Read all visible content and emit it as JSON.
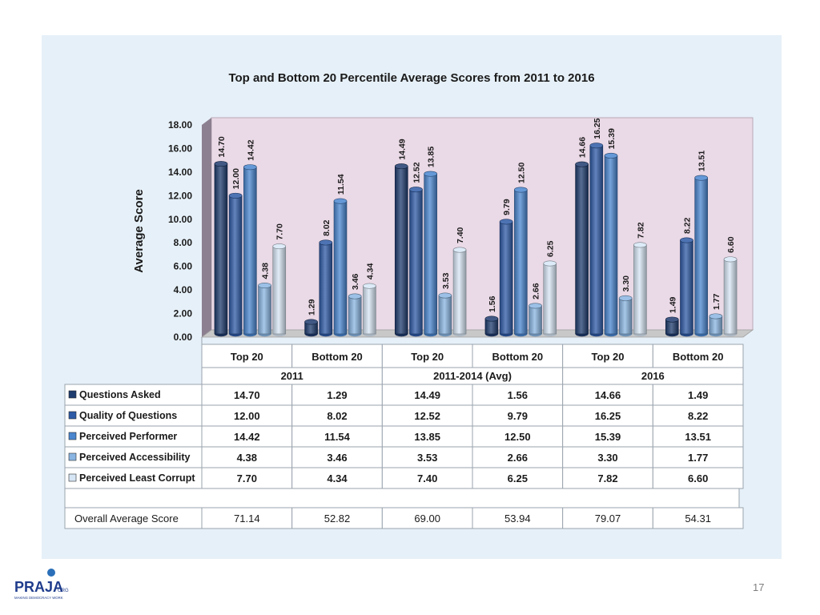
{
  "chart_data": {
    "type": "bar",
    "title": "Top and Bottom 20 Percentile Average Scores from 2011 to 2016",
    "ylabel": "Average Score",
    "xlabel": "",
    "ylim": [
      0,
      18
    ],
    "yticks": [
      "0.00",
      "2.00",
      "4.00",
      "6.00",
      "8.00",
      "10.00",
      "12.00",
      "14.00",
      "16.00",
      "18.00"
    ],
    "categories": [
      "Top 20",
      "Bottom 20",
      "Top 20",
      "Bottom 20",
      "Top 20",
      "Bottom 20"
    ],
    "groups": [
      {
        "label": "2011",
        "span": 2
      },
      {
        "label": "2011-2014 (Avg)",
        "span": 2
      },
      {
        "label": "2016",
        "span": 2
      }
    ],
    "series": [
      {
        "name": "Questions Asked",
        "color": "#1f3c6e",
        "values": [
          14.7,
          1.29,
          14.49,
          1.56,
          14.66,
          1.49
        ],
        "labels": [
          "14.70",
          "1.29",
          "14.49",
          "1.56",
          "14.66",
          "1.49"
        ]
      },
      {
        "name": "Quality of Questions",
        "color": "#2e5aa6",
        "values": [
          12.0,
          8.02,
          12.52,
          9.79,
          16.25,
          8.22
        ],
        "labels": [
          "12.00",
          "8.02",
          "12.52",
          "9.79",
          "16.25",
          "8.22"
        ]
      },
      {
        "name": "Perceived Performer",
        "color": "#4a86cf",
        "values": [
          14.42,
          11.54,
          13.85,
          12.5,
          15.39,
          13.51
        ],
        "labels": [
          "14.42",
          "11.54",
          "13.85",
          "12.50",
          "15.39",
          "13.51"
        ]
      },
      {
        "name": "Perceived Accessibility",
        "color": "#8ab5e2",
        "values": [
          4.38,
          3.46,
          3.53,
          2.66,
          3.3,
          1.77
        ],
        "labels": [
          "4.38",
          "3.46",
          "3.53",
          "2.66",
          "3.30",
          "1.77"
        ]
      },
      {
        "name": "Perceived Least Corrupt",
        "color": "#d7e6f5",
        "values": [
          7.7,
          4.34,
          7.4,
          6.25,
          7.82,
          6.6
        ],
        "labels": [
          "7.70",
          "4.34",
          "7.40",
          "6.25",
          "7.82",
          "6.60"
        ]
      }
    ],
    "overall": {
      "label": "Overall Average Score",
      "values": [
        "71.14",
        "52.82",
        "69.00",
        "53.94",
        "79.07",
        "54.31"
      ]
    }
  },
  "page_number": "17",
  "logo": {
    "text": "PRAJA",
    "suffix": "ORG",
    "tagline": "MAKING DEMOCRACY WORK"
  },
  "colors": {
    "panel": "#e6f0f8",
    "plot_wall": "#ead9e6",
    "floor": "#c8c8c8",
    "text": "#1a1a1a"
  }
}
